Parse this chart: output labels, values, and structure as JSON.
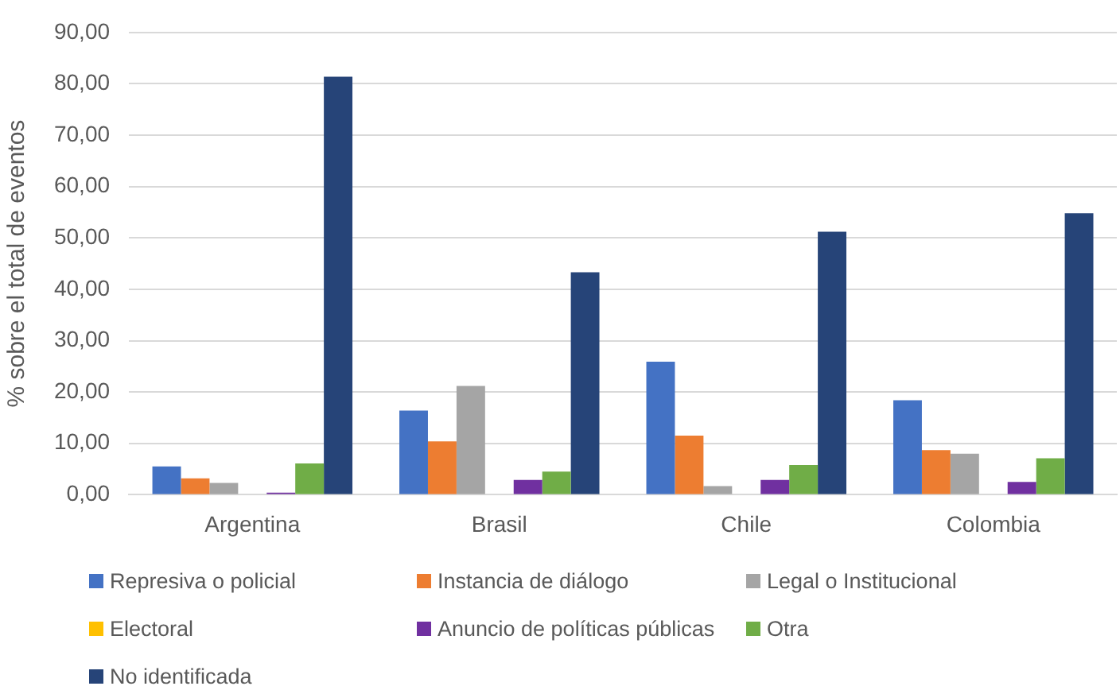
{
  "chart_data": {
    "type": "bar",
    "ylabel": "% sobre el total de eventos",
    "categories": [
      "Argentina",
      "Brasil",
      "Chile",
      "Colombia"
    ],
    "series": [
      {
        "name": "Represiva o policial",
        "color": "#4472c4",
        "values": [
          5.5,
          16.4,
          25.9,
          18.4
        ]
      },
      {
        "name": "Instancia de diálogo",
        "color": "#ed7d31",
        "values": [
          3.2,
          10.4,
          11.5,
          8.7
        ]
      },
      {
        "name": "Legal o Institucional",
        "color": "#a5a5a5",
        "values": [
          2.3,
          21.2,
          1.7,
          8.0
        ]
      },
      {
        "name": "Electoral",
        "color": "#ffc000",
        "values": [
          0,
          0,
          0,
          0
        ]
      },
      {
        "name": "Anuncio de políticas públicas",
        "color": "#7030a0",
        "values": [
          0.4,
          2.9,
          2.9,
          2.5
        ]
      },
      {
        "name": "Otra",
        "color": "#70ad47",
        "values": [
          6.1,
          4.5,
          5.8,
          7.1
        ]
      },
      {
        "name": "No identificada",
        "color": "#264478",
        "values": [
          81.4,
          43.3,
          51.2,
          54.8
        ]
      }
    ],
    "ylim": [
      0,
      90
    ],
    "yticks": [
      {
        "value": 0,
        "label": "0,00"
      },
      {
        "value": 10,
        "label": "10,00"
      },
      {
        "value": 20,
        "label": "20,00"
      },
      {
        "value": 30,
        "label": "30,00"
      },
      {
        "value": 40,
        "label": "40,00"
      },
      {
        "value": 50,
        "label": "50,00"
      },
      {
        "value": 60,
        "label": "60,00"
      },
      {
        "value": 70,
        "label": "70,00"
      },
      {
        "value": 80,
        "label": "80,00"
      },
      {
        "value": 90,
        "label": "90,00"
      }
    ],
    "grid": "y",
    "legend": "bottom"
  }
}
